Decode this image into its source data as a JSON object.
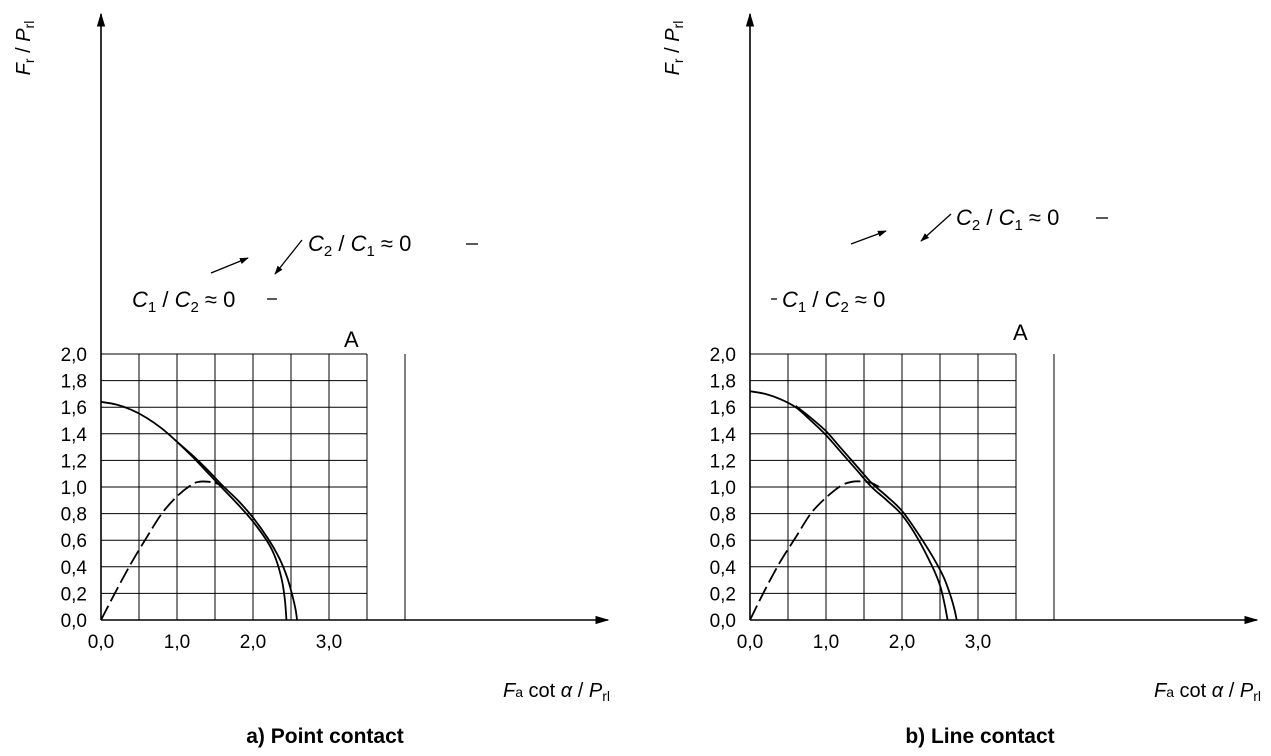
{
  "chart_data": [
    {
      "panel": "a",
      "type": "line",
      "caption_letter": "a)",
      "caption_text": "Point contact",
      "ylabel": {
        "main": "F",
        "sub": "r",
        "slash": " / ",
        "main2": "P",
        "sub2": "rl"
      },
      "xlabel": {
        "main": "F",
        "sub": "a",
        "mid": " cot α / ",
        "main2": "P",
        "sub2": "rl"
      },
      "xlim": [
        0,
        3.3
      ],
      "ylim": [
        0,
        2.2
      ],
      "grid": true,
      "xticks": [
        "0,0",
        "1,0",
        "2,0",
        "3,0"
      ],
      "yticks": [
        "0,0",
        "0,2",
        "0,4",
        "0,6",
        "0,8",
        "1,0",
        "1,2",
        "1,4",
        "1,6",
        "1,8",
        "2,0"
      ],
      "series": [
        {
          "name": "C1 / C2 ≈ 0",
          "style": "solid",
          "x": [
            0.0,
            0.2,
            0.4,
            0.6,
            0.8,
            1.0,
            1.2,
            1.4,
            1.6,
            1.8,
            2.0,
            2.2,
            2.3,
            2.38,
            2.42,
            2.44
          ],
          "y": [
            1.64,
            1.62,
            1.58,
            1.52,
            1.44,
            1.34,
            1.23,
            1.11,
            0.99,
            0.87,
            0.74,
            0.58,
            0.46,
            0.3,
            0.15,
            0.0
          ]
        },
        {
          "name": "C2 / C1 ≈ 0",
          "style": "solid",
          "x": [
            1.0,
            1.2,
            1.4,
            1.6,
            1.8,
            2.0,
            2.2,
            2.35,
            2.45,
            2.52,
            2.56,
            2.58
          ],
          "y": [
            1.34,
            1.24,
            1.13,
            1.01,
            0.9,
            0.77,
            0.61,
            0.46,
            0.32,
            0.18,
            0.08,
            0.0
          ]
        },
        {
          "name": "",
          "style": "dashed",
          "x": [
            0.0,
            0.2,
            0.4,
            0.6,
            0.8,
            1.0,
            1.2,
            1.3,
            1.4,
            1.5,
            1.6
          ],
          "y": [
            0.0,
            0.22,
            0.43,
            0.62,
            0.8,
            0.93,
            1.02,
            1.04,
            1.04,
            1.03,
            1.01
          ]
        }
      ],
      "annotations": [
        {
          "id": "c1c2",
          "text_main": "C",
          "text_sub": "1",
          "text_mid": " / ",
          "text_main2": "C",
          "text_sub2": "2",
          "text_end": " ≈ 0"
        },
        {
          "id": "c2c1",
          "text_main": "C",
          "text_sub": "2",
          "text_mid": " / ",
          "text_main2": "C",
          "text_sub2": "1",
          "text_end": " ≈ 0"
        },
        {
          "id": "pointA",
          "text": "A"
        }
      ]
    },
    {
      "panel": "b",
      "type": "line",
      "caption_letter": "b)",
      "caption_text": "Line contact",
      "ylabel": {
        "main": "F",
        "sub": "r",
        "slash": " / ",
        "main2": "P",
        "sub2": "rl"
      },
      "xlabel": {
        "main": "F",
        "sub": "a",
        "mid": " cot α / ",
        "main2": "P",
        "sub2": "rl"
      },
      "xlim": [
        0,
        3.3
      ],
      "ylim": [
        0,
        2.2
      ],
      "grid": true,
      "xticks": [
        "0,0",
        "1,0",
        "2,0",
        "3,0"
      ],
      "yticks": [
        "0,0",
        "0,2",
        "0,4",
        "0,6",
        "0,8",
        "1,0",
        "1,2",
        "1,4",
        "1,6",
        "1,8",
        "2,0"
      ],
      "series": [
        {
          "name": "C1 / C2 ≈ 0",
          "style": "solid",
          "x": [
            0.0,
            0.2,
            0.4,
            0.6,
            0.8,
            1.0,
            1.2,
            1.4,
            1.6,
            1.8,
            2.0,
            2.2,
            2.4,
            2.5,
            2.56,
            2.6
          ],
          "y": [
            1.72,
            1.7,
            1.66,
            1.6,
            1.5,
            1.39,
            1.26,
            1.13,
            1.0,
            0.9,
            0.79,
            0.62,
            0.4,
            0.26,
            0.12,
            0.0
          ]
        },
        {
          "name": "C2 / C1 ≈ 0",
          "style": "solid",
          "x": [
            0.6,
            0.8,
            1.0,
            1.2,
            1.4,
            1.6,
            1.8,
            2.0,
            2.2,
            2.4,
            2.55,
            2.64,
            2.69,
            2.72
          ],
          "y": [
            1.61,
            1.52,
            1.42,
            1.29,
            1.16,
            1.03,
            0.93,
            0.82,
            0.66,
            0.48,
            0.32,
            0.18,
            0.08,
            0.0
          ]
        },
        {
          "name": "",
          "style": "dashed",
          "x": [
            0.0,
            0.2,
            0.4,
            0.6,
            0.8,
            1.0,
            1.2,
            1.35,
            1.5,
            1.6,
            1.7
          ],
          "y": [
            0.0,
            0.23,
            0.44,
            0.62,
            0.8,
            0.92,
            1.01,
            1.04,
            1.04,
            1.03,
            1.0
          ]
        }
      ],
      "annotations": [
        {
          "id": "c1c2",
          "text_main": "C",
          "text_sub": "1",
          "text_mid": " / ",
          "text_main2": "C",
          "text_sub2": "2",
          "text_end": " ≈ 0"
        },
        {
          "id": "c2c1",
          "text_main": "C",
          "text_sub": "2",
          "text_mid": " / ",
          "text_main2": "C",
          "text_sub2": "1",
          "text_end": " ≈ 0"
        },
        {
          "id": "pointA",
          "text": "A"
        }
      ]
    }
  ]
}
